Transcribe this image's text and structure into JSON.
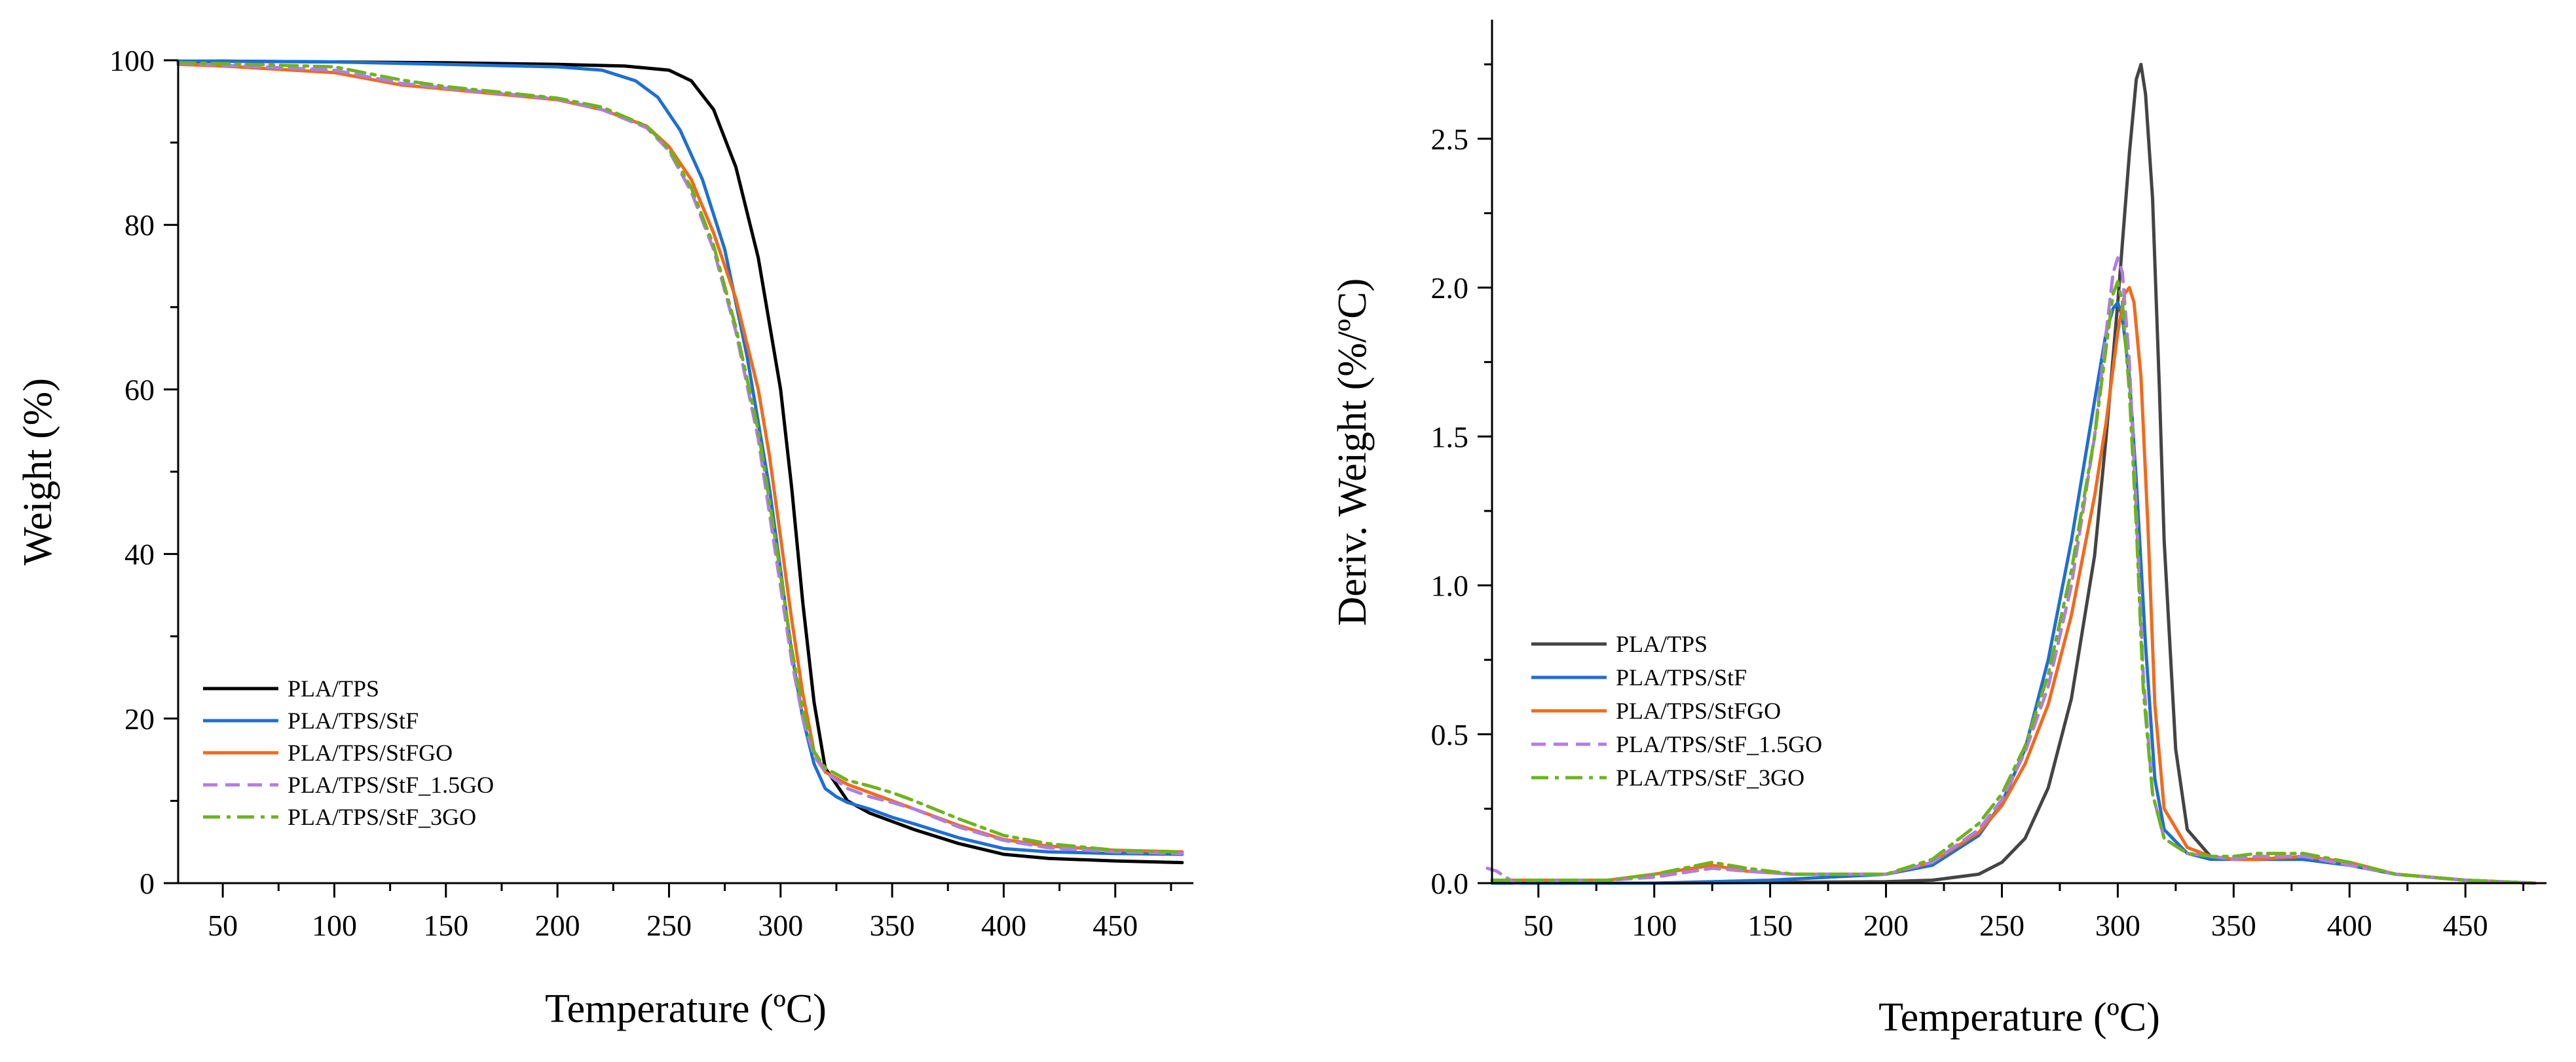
{
  "chart_data": [
    {
      "type": "line",
      "title": "",
      "xlabel": "Temperature (ºC)",
      "ylabel": "Weight (%)",
      "xlim": [
        30,
        485
      ],
      "ylim": [
        0,
        100
      ],
      "xticks": [
        50,
        100,
        150,
        200,
        250,
        300,
        350,
        400,
        450
      ],
      "yticks": [
        0,
        20,
        40,
        60,
        80,
        100
      ],
      "grid": false,
      "legend_position": "bottom-left",
      "series": [
        {
          "name": "PLA/TPS",
          "color": "#000000",
          "dash": "solid",
          "x": [
            30,
            50,
            100,
            150,
            200,
            230,
            250,
            260,
            270,
            280,
            290,
            300,
            305,
            310,
            315,
            320,
            330,
            340,
            350,
            360,
            380,
            400,
            420,
            450,
            480
          ],
          "y": [
            99.8,
            99.9,
            99.8,
            99.7,
            99.5,
            99.3,
            98.8,
            97.5,
            94,
            87,
            76,
            60,
            48,
            34,
            22,
            14,
            10,
            8.5,
            7.5,
            6.5,
            4.8,
            3.5,
            3.0,
            2.7,
            2.5
          ]
        },
        {
          "name": "PLA/TPS/StF",
          "color": "#1f6fd1",
          "dash": "solid",
          "x": [
            30,
            50,
            100,
            150,
            200,
            220,
            235,
            245,
            255,
            265,
            275,
            285,
            295,
            300,
            305,
            310,
            315,
            320,
            325,
            330,
            340,
            350,
            360,
            380,
            400,
            420,
            450,
            480
          ],
          "y": [
            99.9,
            99.9,
            99.8,
            99.5,
            99.2,
            98.8,
            97.5,
            95.5,
            91.5,
            85.5,
            77,
            64,
            48,
            38,
            28,
            20,
            14.5,
            11.5,
            10.5,
            9.8,
            9.0,
            8.0,
            7.2,
            5.5,
            4.2,
            3.8,
            3.6,
            3.5
          ]
        },
        {
          "name": "PLA/TPS/StFGO",
          "color": "#f26a1b",
          "dash": "solid",
          "x": [
            30,
            50,
            100,
            130,
            150,
            200,
            220,
            240,
            250,
            260,
            270,
            280,
            290,
            295,
            300,
            305,
            310,
            315,
            320,
            330,
            340,
            350,
            360,
            380,
            400,
            420,
            450,
            480
          ],
          "y": [
            99.5,
            99.3,
            98.5,
            97.0,
            96.5,
            95.2,
            94.0,
            92.0,
            89.5,
            85.5,
            79,
            71,
            60,
            52,
            42,
            32,
            23,
            16,
            13.5,
            12,
            11,
            10,
            9,
            7,
            5.3,
            4.5,
            4.0,
            3.8
          ]
        },
        {
          "name": "PLA/TPS/StF_1.5GO",
          "color": "#b07ee0",
          "dash": "dashed",
          "x": [
            30,
            50,
            100,
            130,
            150,
            200,
            220,
            240,
            250,
            260,
            270,
            280,
            290,
            295,
            300,
            305,
            310,
            315,
            320,
            330,
            340,
            350,
            360,
            380,
            400,
            420,
            450,
            480
          ],
          "y": [
            99.6,
            99.4,
            98.8,
            97.2,
            96.6,
            95.3,
            94.0,
            91.8,
            89.0,
            84.0,
            77,
            67,
            54,
            45,
            36,
            27,
            20,
            15.5,
            13.5,
            11.5,
            10.5,
            9.8,
            9.0,
            6.8,
            5.2,
            4.3,
            3.8,
            3.6
          ]
        },
        {
          "name": "PLA/TPS/StF_3GO",
          "color": "#6db320",
          "dash": "dashdot",
          "x": [
            30,
            50,
            100,
            130,
            150,
            200,
            220,
            240,
            250,
            260,
            270,
            280,
            290,
            295,
            300,
            305,
            310,
            315,
            320,
            330,
            340,
            350,
            360,
            380,
            400,
            420,
            450,
            480
          ],
          "y": [
            99.7,
            99.6,
            99.2,
            97.6,
            96.8,
            95.4,
            94.3,
            92.0,
            89.2,
            84.5,
            77.5,
            67.5,
            55,
            46.5,
            37.5,
            28.5,
            21,
            16,
            14,
            12.5,
            11.8,
            11.0,
            10.0,
            7.8,
            5.8,
            4.8,
            4.0,
            3.8
          ]
        }
      ]
    },
    {
      "type": "line",
      "title": "",
      "xlabel": "Temperature (ºC)",
      "ylabel": "Deriv. Weight (%/ºC)",
      "xlim": [
        30,
        485
      ],
      "ylim": [
        0,
        2.9
      ],
      "xticks": [
        50,
        100,
        150,
        200,
        250,
        300,
        350,
        400,
        450
      ],
      "yticks": [
        0.0,
        0.5,
        1.0,
        1.5,
        2.0,
        2.5
      ],
      "ytick_labels": [
        "0.0",
        "0.5",
        "1.0",
        "1.5",
        "2.0",
        "2.5"
      ],
      "grid": false,
      "legend_position": "middle-left",
      "series": [
        {
          "name": "PLA/TPS",
          "color": "#444444",
          "dash": "solid",
          "x": [
            30,
            100,
            200,
            220,
            240,
            250,
            260,
            270,
            280,
            290,
            295,
            300,
            305,
            308,
            310,
            312,
            315,
            318,
            320,
            325,
            330,
            340,
            350,
            360,
            380,
            400,
            420,
            450,
            480
          ],
          "y": [
            0.0,
            0.0,
            0.005,
            0.01,
            0.03,
            0.07,
            0.15,
            0.32,
            0.62,
            1.1,
            1.5,
            1.95,
            2.45,
            2.7,
            2.75,
            2.65,
            2.3,
            1.65,
            1.15,
            0.45,
            0.18,
            0.09,
            0.08,
            0.08,
            0.08,
            0.06,
            0.03,
            0.01,
            0.0
          ]
        },
        {
          "name": "PLA/TPS/StF",
          "color": "#1f6fd1",
          "dash": "solid",
          "x": [
            30,
            100,
            150,
            200,
            220,
            240,
            250,
            260,
            270,
            280,
            290,
            295,
            298,
            300,
            302,
            305,
            308,
            312,
            316,
            320,
            330,
            340,
            350,
            360,
            380,
            400,
            420,
            450,
            480
          ],
          "y": [
            0.0,
            0.0,
            0.01,
            0.03,
            0.06,
            0.16,
            0.27,
            0.45,
            0.75,
            1.15,
            1.62,
            1.85,
            1.93,
            1.95,
            1.9,
            1.7,
            1.35,
            0.8,
            0.35,
            0.18,
            0.1,
            0.08,
            0.08,
            0.08,
            0.08,
            0.06,
            0.03,
            0.01,
            0.0
          ]
        },
        {
          "name": "PLA/TPS/StFGO",
          "color": "#f26a1b",
          "dash": "solid",
          "x": [
            30,
            50,
            80,
            100,
            125,
            140,
            160,
            200,
            220,
            240,
            250,
            260,
            270,
            280,
            290,
            295,
            300,
            303,
            305,
            307,
            310,
            313,
            316,
            320,
            330,
            340,
            350,
            360,
            380,
            400,
            420,
            450,
            480
          ],
          "y": [
            0.01,
            0.01,
            0.01,
            0.03,
            0.06,
            0.04,
            0.03,
            0.03,
            0.07,
            0.17,
            0.26,
            0.4,
            0.6,
            0.9,
            1.3,
            1.55,
            1.85,
            1.98,
            2.0,
            1.95,
            1.7,
            1.2,
            0.6,
            0.25,
            0.12,
            0.09,
            0.08,
            0.08,
            0.09,
            0.07,
            0.03,
            0.01,
            0.0
          ]
        },
        {
          "name": "PLA/TPS/StF_1.5GO",
          "color": "#b07ee0",
          "dash": "dashed",
          "x": [
            28,
            32,
            40,
            60,
            80,
            100,
            125,
            140,
            160,
            200,
            220,
            240,
            250,
            260,
            270,
            280,
            290,
            295,
            298,
            300,
            302,
            305,
            308,
            311,
            315,
            320,
            330,
            340,
            350,
            360,
            380,
            400,
            420,
            450,
            480
          ],
          "y": [
            0.05,
            0.04,
            0.0,
            0.01,
            0.01,
            0.02,
            0.05,
            0.04,
            0.03,
            0.03,
            0.07,
            0.18,
            0.28,
            0.44,
            0.66,
            1.0,
            1.5,
            1.85,
            2.05,
            2.1,
            2.05,
            1.75,
            1.25,
            0.7,
            0.3,
            0.15,
            0.1,
            0.09,
            0.08,
            0.09,
            0.09,
            0.06,
            0.03,
            0.01,
            0.0
          ]
        },
        {
          "name": "PLA/TPS/StF_3GO",
          "color": "#6db320",
          "dash": "dashdot",
          "x": [
            30,
            50,
            80,
            100,
            125,
            140,
            160,
            200,
            220,
            240,
            250,
            260,
            270,
            280,
            290,
            295,
            298,
            300,
            302,
            305,
            308,
            311,
            315,
            320,
            330,
            340,
            350,
            360,
            380,
            400,
            420,
            450,
            480
          ],
          "y": [
            0.01,
            0.01,
            0.01,
            0.03,
            0.07,
            0.05,
            0.03,
            0.03,
            0.08,
            0.2,
            0.3,
            0.46,
            0.7,
            1.05,
            1.5,
            1.8,
            1.98,
            2.02,
            1.95,
            1.65,
            1.2,
            0.65,
            0.3,
            0.15,
            0.1,
            0.09,
            0.09,
            0.1,
            0.1,
            0.07,
            0.03,
            0.01,
            0.0
          ]
        }
      ]
    }
  ]
}
